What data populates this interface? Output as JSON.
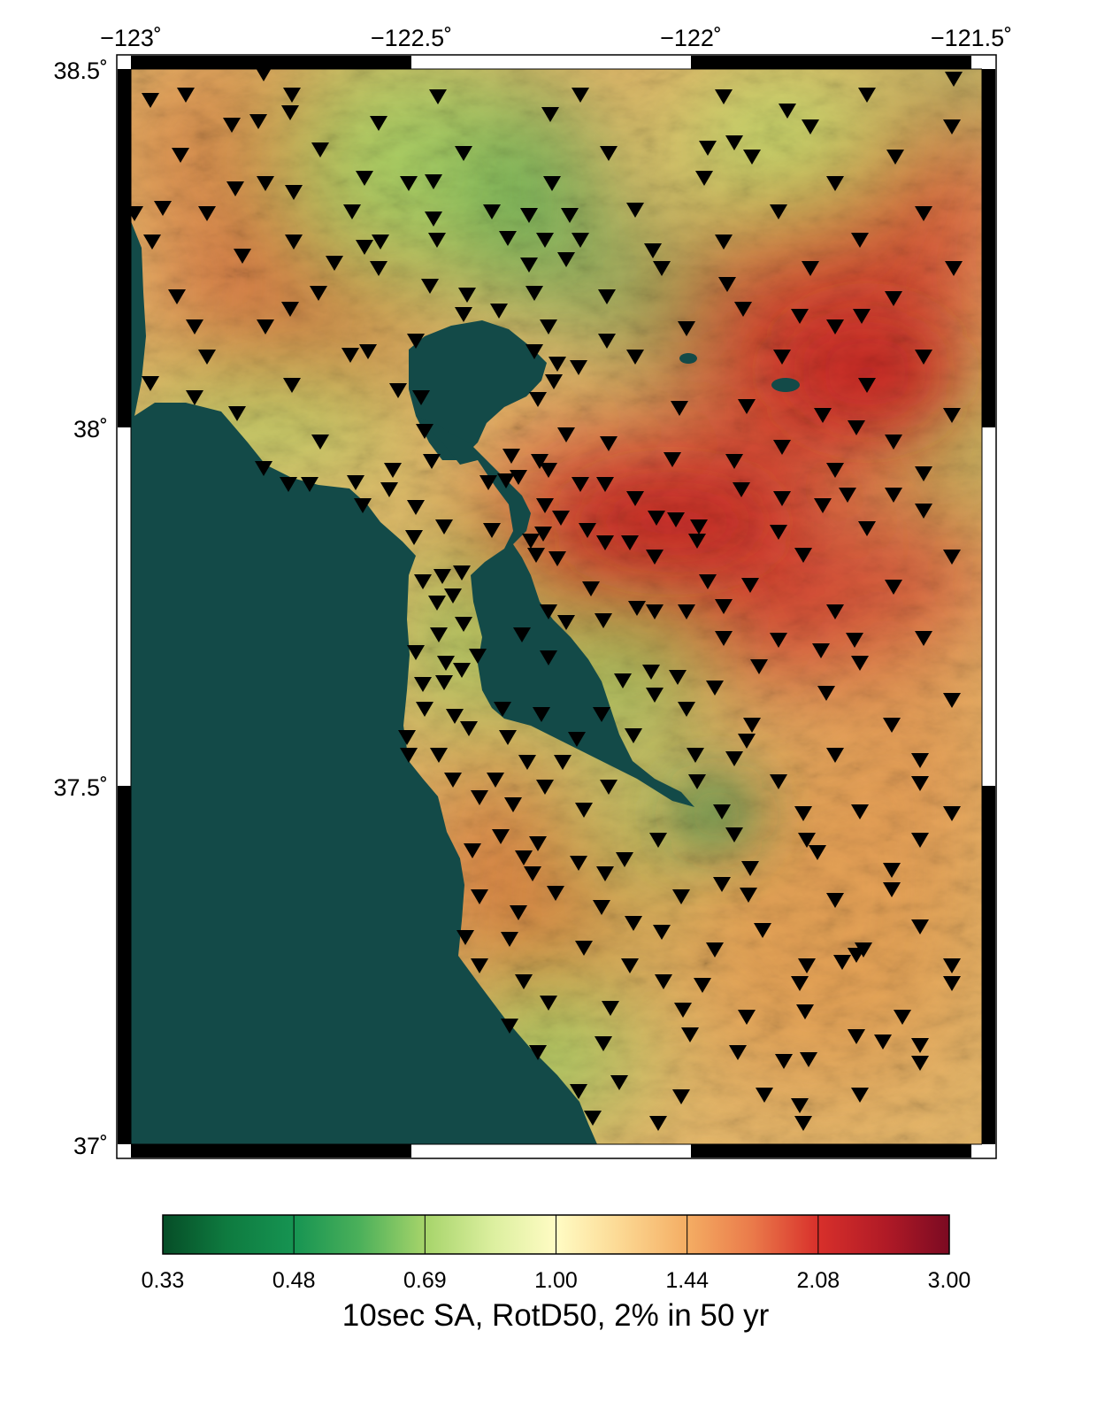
{
  "map": {
    "longitude_ticks": [
      "−123˚",
      "−122.5˚",
      "−122˚",
      "−121.5˚"
    ],
    "latitude_ticks": [
      "38.5˚",
      "38˚",
      "37.5˚",
      "37˚"
    ],
    "longitude_values": [
      -123,
      -122.5,
      -122,
      -121.5
    ],
    "latitude_values": [
      38.5,
      38,
      37.5,
      37
    ],
    "extent": {
      "lon_min": -123.0,
      "lon_max": -121.5,
      "lat_min": 37.0,
      "lat_max": 38.5
    },
    "colors": {
      "water": "#134a48",
      "frame_black": "#000000",
      "frame_white": "#ffffff",
      "station_marker": "#000000"
    },
    "station_marker": "inverted-triangle-icon"
  },
  "colorbar": {
    "tick_labels": [
      "0.33",
      "0.48",
      "0.69",
      "1.00",
      "1.44",
      "2.08",
      "3.00"
    ],
    "title": "10sec SA, RotD50, 2% in 50 yr",
    "colors": [
      "#064d27",
      "#169452",
      "#7cc35a",
      "#fffcc4",
      "#f4ad63",
      "#d8302b",
      "#7b0a22"
    ]
  }
}
